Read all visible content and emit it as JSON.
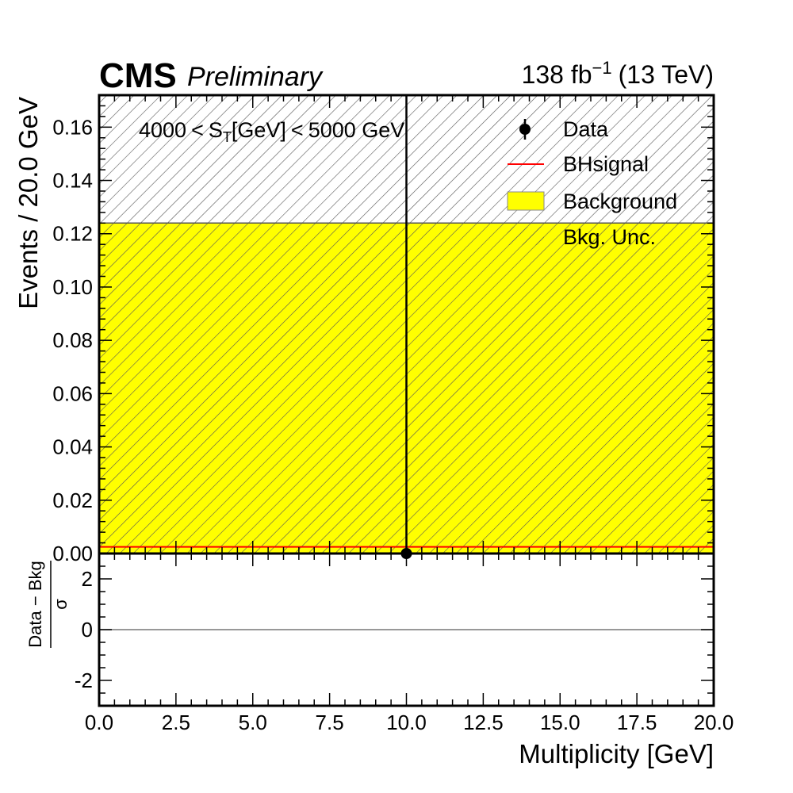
{
  "header": {
    "experiment": "CMS",
    "status": "Preliminary",
    "lumi_value": "138 fb",
    "lumi_exponent": "−1",
    "energy": "(13 TeV)"
  },
  "annotation": {
    "range_low": "4000",
    "less_than_1": "<",
    "st_base": "S",
    "st_sub": "T",
    "st_unit": "[GeV]",
    "less_than_2": "<",
    "range_high": "5000 GeV"
  },
  "legend": {
    "position": "top-right",
    "items": [
      {
        "label": "Data",
        "icon": "data-marker-icon"
      },
      {
        "label": "BHsignal",
        "icon": "red-line-icon"
      },
      {
        "label": "Background",
        "icon": "yellow-box-icon"
      },
      {
        "label": "Bkg. Unc.",
        "icon": "hatch-icon"
      }
    ]
  },
  "colors": {
    "background_fill": "#ffff00",
    "signal_line": "#ff0000",
    "hatch": "#555555",
    "data": "#000000"
  },
  "chart_data": [
    {
      "type": "bar",
      "panel": "main",
      "ylabel": "Events / 20.0 GeV",
      "xlim": [
        0,
        20
      ],
      "ylim": [
        0,
        0.172
      ],
      "y_ticks": [
        "0.00",
        "0.02",
        "0.04",
        "0.06",
        "0.08",
        "0.10",
        "0.12",
        "0.14",
        "0.16"
      ],
      "grid": false,
      "series": [
        {
          "name": "Background",
          "kind": "stacked-bar",
          "bins": [
            [
              0,
              20
            ]
          ],
          "values": [
            0.124
          ]
        },
        {
          "name": "Bkg. Unc.",
          "kind": "hatched-band",
          "bins": [
            [
              0,
              20
            ]
          ],
          "low": [
            0.0
          ],
          "high": [
            0.172
          ]
        },
        {
          "name": "BHsignal",
          "kind": "step-line",
          "bins": [
            [
              0,
              20
            ]
          ],
          "values": [
            0.0025
          ]
        },
        {
          "name": "Data",
          "kind": "points-with-errors",
          "x": [
            10
          ],
          "y": [
            0
          ],
          "yerr": [
            0.172
          ]
        }
      ]
    },
    {
      "type": "scatter",
      "panel": "ratio",
      "ylabel_numerator": "Data − Bkg",
      "ylabel_denominator": "σ",
      "xlabel": "Multiplicity [GeV]",
      "xlim": [
        0,
        20
      ],
      "ylim": [
        -3,
        3
      ],
      "y_ticks": [
        "2",
        "0",
        "-2"
      ],
      "x_ticks": [
        "0.0",
        "2.5",
        "5.0",
        "7.5",
        "10.0",
        "12.5",
        "15.0",
        "17.5",
        "20.0"
      ],
      "reference_line": 0,
      "x": [],
      "y": []
    }
  ]
}
